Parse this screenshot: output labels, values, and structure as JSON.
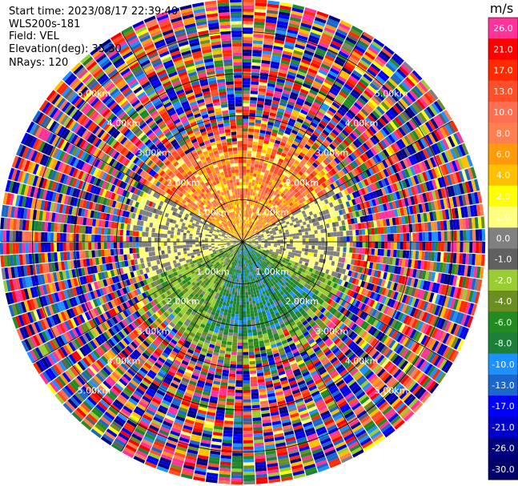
{
  "header": {
    "start_time": "Start time: 2023/08/17 22:39:40",
    "instrument": "WLS200s-181",
    "field": "Field: VEL",
    "elevation": "Elevation(deg): 35.30",
    "nrays": "NRays: 120"
  },
  "colorbar": {
    "unit": "m/s",
    "labels": [
      "26.0",
      "21.0",
      "17.0",
      "13.0",
      "10.0",
      "8.0",
      "6.0",
      "4.0",
      "2.0",
      "1.0",
      "0.0",
      "-1.0",
      "-2.0",
      "-4.0",
      "-6.0",
      "-8.0",
      "-10.0",
      "-13.0",
      "-17.0",
      "-21.0",
      "-26.0",
      "-30.0"
    ],
    "colors": [
      "#ff3399",
      "#ff0000",
      "#ff2a00",
      "#ff4f28",
      "#ff6e50",
      "#ff7f50",
      "#ff9a0a",
      "#ffc000",
      "#ffff00",
      "#ffff80",
      "#808080",
      "#606060",
      "#9acd32",
      "#6b8e23",
      "#228b22",
      "#1c7f3a",
      "#1e90ff",
      "#1a66cc",
      "#0000ff",
      "#0000cd",
      "#000080",
      "#00006a"
    ]
  },
  "chart_data": {
    "type": "ppi",
    "field": "VEL",
    "unit": "m/s",
    "n_rays": 120,
    "range_rings_km": [
      1.0,
      2.0,
      3.0,
      4.0,
      5.0
    ],
    "ring_label_suffix": "km",
    "max_range_km": 5.75,
    "ring_labels": {
      "1": [
        "1.00km",
        "1.00km",
        "1.00km",
        "1.00km"
      ],
      "2": [
        "2.00km",
        "2.00km",
        "2.00km",
        "2.00km"
      ],
      "3": [
        "3.00km",
        "3.00km",
        "3.00km",
        "3.00km"
      ],
      "4": [
        "4.00km",
        "4.00km",
        "4.00km",
        "4.00km"
      ],
      "5": [
        "5.00km",
        "5.00km",
        "5.00km",
        "5.00km"
      ]
    },
    "pattern": {
      "receding_sector_azimuth_deg": [
        300,
        60
      ],
      "receding_velocity_range_ms": [
        2.0,
        10.0
      ],
      "approaching_sector_azimuth_deg": [
        110,
        250
      ],
      "approaching_velocity_range_ms": [
        -10.0,
        -2.0
      ],
      "noise_beyond_km": 2.6
    },
    "grid": true
  }
}
